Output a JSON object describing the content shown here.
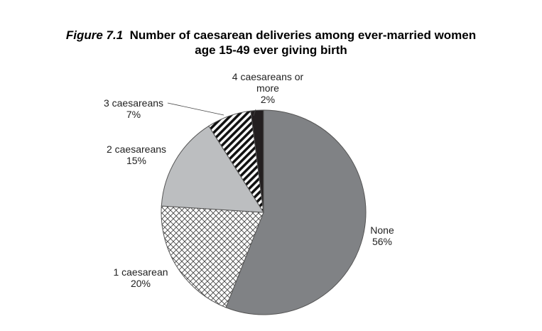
{
  "figure": {
    "number": "Figure 7.1",
    "title_part1": "Number of caesarean deliveries among ever-married women",
    "title_part2": "age 15-49 ever giving birth"
  },
  "chart_data": {
    "type": "pie",
    "start_angle_deg": 0,
    "direction": "clockwise",
    "slices": [
      {
        "label": "None",
        "value": 56,
        "value_label": "56%",
        "fill": "#808285",
        "pattern": "solid"
      },
      {
        "label": "1 caesarean",
        "value": 20,
        "value_label": "20%",
        "fill": "#ffffff",
        "pattern": "crosshatch"
      },
      {
        "label": "2 caesareans",
        "value": 15,
        "value_label": "15%",
        "fill": "#bcbec0",
        "pattern": "solid"
      },
      {
        "label": "3 caesareans",
        "value": 7,
        "value_label": "7%",
        "fill": "#ffffff",
        "pattern": "diagonal-stripes"
      },
      {
        "label_lines": [
          "4 caesareans or",
          "more"
        ],
        "value": 2,
        "value_label": "2%",
        "fill": "#231f20",
        "pattern": "solid"
      }
    ],
    "colors": {
      "stroke": "#555555",
      "leader": "#444444"
    }
  }
}
